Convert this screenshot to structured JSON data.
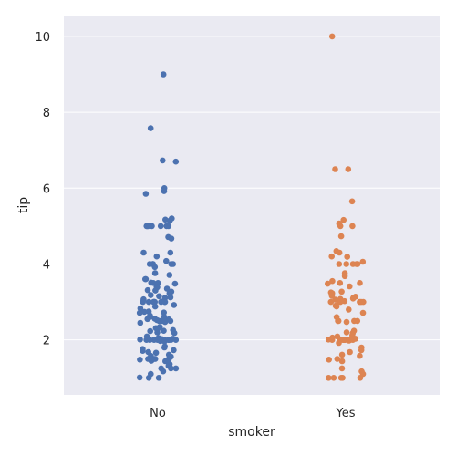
{
  "chart_data": {
    "type": "scatter",
    "title": "",
    "xlabel": "smoker",
    "ylabel": "tip",
    "categories": [
      "No",
      "Yes"
    ],
    "ylim": [
      0.55,
      10.55
    ],
    "yticks": [
      2,
      4,
      6,
      8,
      10
    ],
    "grid": true,
    "legend": "none",
    "background": "#eaeaf2",
    "series": [
      {
        "category": "No",
        "color": "#4c72b0",
        "values": [
          9.0,
          7.58,
          6.73,
          6.7,
          6.0,
          5.92,
          5.85,
          5.2,
          5.17,
          5.14,
          5.0,
          5.0,
          5.0,
          5.0,
          5.0,
          5.0,
          5.0,
          4.71,
          4.67,
          4.3,
          4.3,
          4.2,
          4.08,
          4.0,
          4.0,
          4.0,
          4.0,
          4.0,
          3.92,
          3.76,
          3.71,
          3.6,
          3.6,
          3.51,
          3.5,
          3.5,
          3.48,
          3.4,
          3.35,
          3.31,
          3.3,
          3.27,
          3.23,
          3.18,
          3.15,
          3.12,
          3.11,
          3.07,
          3.0,
          3.0,
          3.0,
          3.0,
          3.0,
          3.0,
          3.0,
          3.0,
          3.0,
          2.92,
          2.88,
          2.83,
          2.75,
          2.74,
          2.72,
          2.71,
          2.64,
          2.6,
          2.56,
          2.55,
          2.54,
          2.52,
          2.5,
          2.5,
          2.5,
          2.47,
          2.45,
          2.34,
          2.31,
          2.3,
          2.24,
          2.23,
          2.2,
          2.18,
          2.09,
          2.05,
          2.03,
          2.02,
          2.01,
          2.0,
          2.0,
          2.0,
          2.0,
          2.0,
          2.0,
          2.0,
          2.0,
          2.0,
          2.0,
          2.0,
          2.0,
          2.0,
          1.97,
          1.83,
          1.76,
          1.73,
          1.71,
          1.68,
          1.66,
          1.61,
          1.58,
          1.56,
          1.5,
          1.5,
          1.5,
          1.5,
          1.48,
          1.45,
          1.44,
          1.36,
          1.32,
          1.25,
          1.25,
          1.25,
          1.1,
          1.01,
          1.0,
          1.0,
          1.17,
          1.96,
          2.61,
          3.39,
          3.02,
          2.26,
          1.8
        ]
      },
      {
        "category": "Yes",
        "color": "#dd8452",
        "values": [
          10.0,
          6.5,
          6.5,
          5.65,
          5.16,
          5.07,
          5.0,
          5.0,
          4.73,
          4.34,
          4.3,
          4.2,
          4.19,
          4.06,
          4.0,
          4.0,
          4.0,
          4.0,
          4.0,
          3.76,
          3.68,
          3.55,
          3.5,
          3.5,
          3.48,
          3.41,
          3.27,
          3.25,
          3.23,
          3.18,
          3.16,
          3.14,
          3.11,
          3.09,
          3.08,
          3.06,
          3.02,
          3.0,
          3.0,
          3.0,
          3.0,
          3.0,
          3.0,
          2.9,
          2.88,
          2.8,
          2.71,
          2.6,
          2.5,
          2.5,
          2.5,
          2.5,
          2.47,
          2.24,
          2.2,
          2.18,
          2.12,
          2.09,
          2.06,
          2.03,
          2.01,
          2.0,
          2.0,
          2.0,
          2.0,
          2.0,
          2.0,
          2.0,
          2.0,
          2.0,
          2.0,
          1.98,
          1.92,
          1.8,
          1.73,
          1.68,
          1.61,
          1.58,
          1.5,
          1.48,
          1.44,
          1.25,
          1.17,
          1.1,
          1.0,
          1.0,
          1.0,
          1.0,
          1.0
        ]
      }
    ]
  }
}
